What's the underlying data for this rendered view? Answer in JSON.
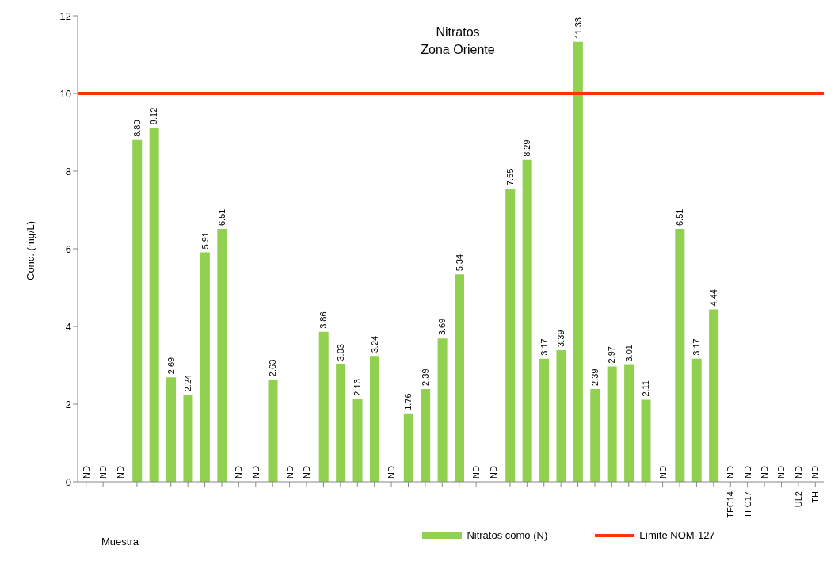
{
  "chart_data": {
    "type": "bar",
    "title": "Nitratos",
    "subtitle": "Zona Oriente",
    "xlabel": "Muestra",
    "ylabel": "Conc. (mg/L)",
    "categories": [
      null,
      null,
      null,
      null,
      null,
      null,
      null,
      null,
      null,
      null,
      null,
      null,
      null,
      null,
      null,
      null,
      null,
      null,
      null,
      null,
      null,
      null,
      null,
      null,
      null,
      null,
      null,
      null,
      null,
      null,
      null,
      null,
      null,
      null,
      null,
      null,
      null,
      null,
      "TFC14",
      "TFC17",
      null,
      null,
      "UL2",
      "TH"
    ],
    "series": [
      {
        "name": "Nitratos como (N)",
        "color": "#92d050",
        "values": [
          null,
          null,
          null,
          8.8,
          9.12,
          2.69,
          2.24,
          5.91,
          6.51,
          null,
          null,
          2.63,
          null,
          null,
          3.86,
          3.03,
          2.13,
          3.24,
          null,
          1.76,
          2.39,
          3.69,
          5.34,
          null,
          null,
          7.55,
          8.29,
          3.17,
          3.39,
          11.33,
          2.39,
          2.97,
          3.01,
          2.11,
          null,
          6.51,
          3.17,
          4.44,
          null,
          null,
          null,
          null,
          null,
          null
        ],
        "value_labels": [
          "ND",
          "ND",
          "ND",
          "8.80",
          "9.12",
          "2.69",
          "2.24",
          "5.91",
          "6.51",
          "ND",
          "ND",
          "2.63",
          "ND",
          "ND",
          "3.86",
          "3.03",
          "2.13",
          "3.24",
          "ND",
          "1.76",
          "2.39",
          "3.69",
          "5.34",
          "ND",
          "ND",
          "7.55",
          "8.29",
          "3.17",
          "3.39",
          "11.33",
          "2.39",
          "2.97",
          "3.01",
          "2.11",
          "ND",
          "6.51",
          "3.17",
          "4.44",
          "ND",
          "ND",
          "ND",
          "ND",
          "ND",
          "ND"
        ]
      }
    ],
    "ref_lines": [
      {
        "axis": "y",
        "value": 10,
        "label": "Límite NOM-127",
        "color": "#ff3300"
      }
    ],
    "ylim": [
      0,
      12
    ],
    "yticks": [
      0,
      2,
      4,
      6,
      8,
      10,
      12
    ],
    "grid": false,
    "legend": "bottom"
  }
}
